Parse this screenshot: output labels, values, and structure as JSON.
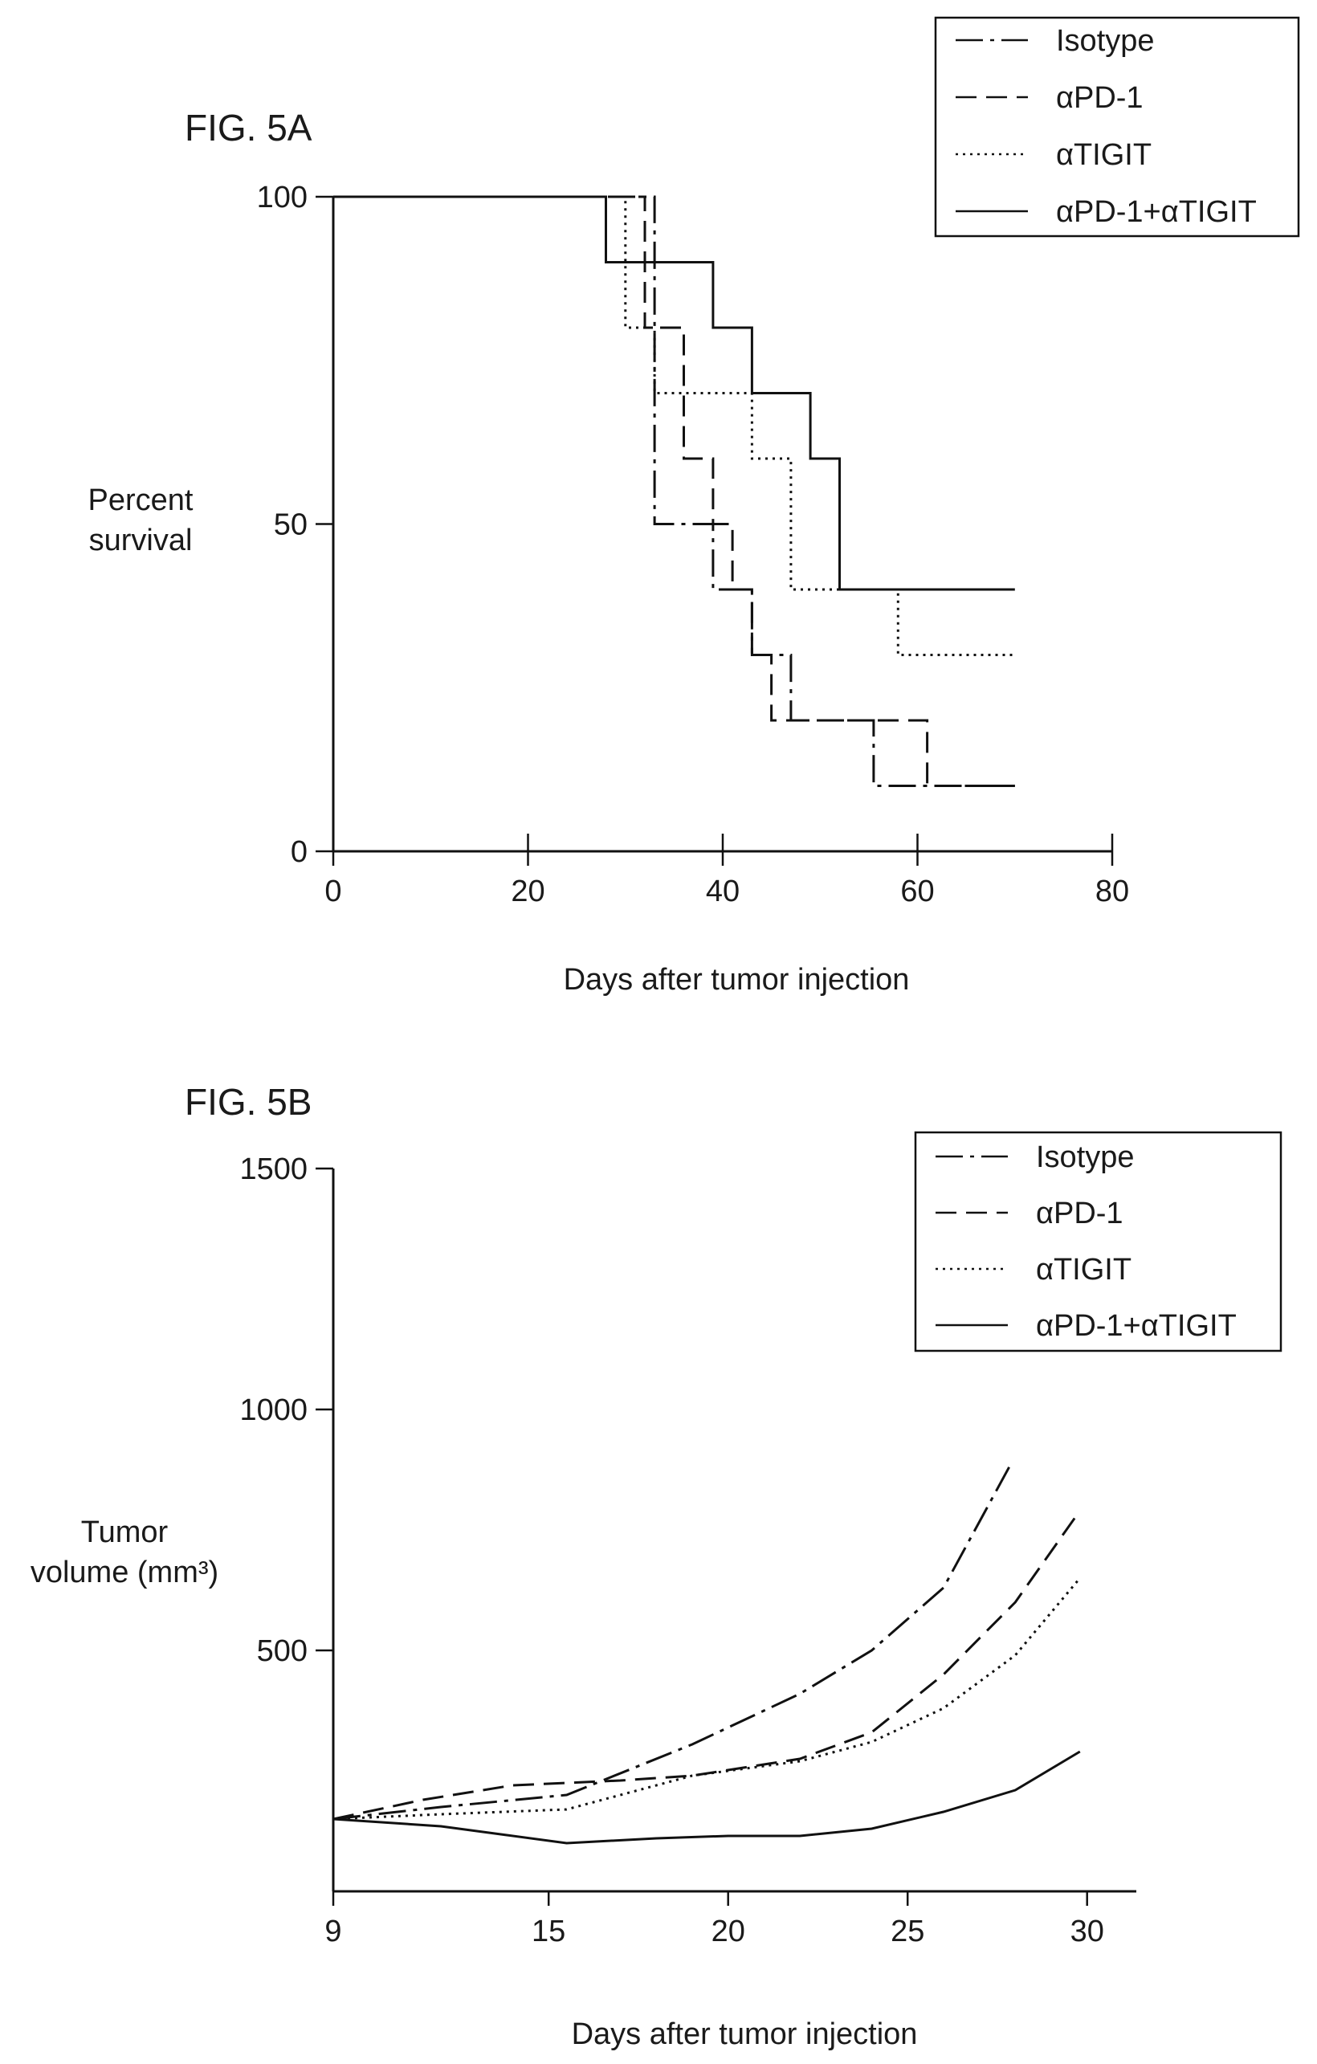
{
  "chart_data": [
    {
      "type": "line",
      "fig_label": "FIG. 5A",
      "xlabel": "Days after tumor injection",
      "ylabel": [
        "Percent",
        "survival"
      ],
      "xlim": [
        0,
        80
      ],
      "ylim": [
        0,
        100
      ],
      "xticks": [
        0,
        20,
        40,
        60,
        80
      ],
      "yticks": [
        0,
        50,
        100
      ],
      "grid": false,
      "legend_position": "top-right",
      "steps": true,
      "series": [
        {
          "name": "Isotype",
          "style": "dashdot",
          "points": [
            [
              0,
              100
            ],
            [
              33,
              100
            ],
            [
              33,
              50
            ],
            [
              39,
              50
            ],
            [
              39,
              40
            ],
            [
              43,
              40
            ],
            [
              43,
              30
            ],
            [
              47,
              30
            ],
            [
              47,
              20
            ],
            [
              55.5,
              20
            ],
            [
              55.5,
              10
            ],
            [
              70,
              10
            ]
          ]
        },
        {
          "name": "αPD-1",
          "style": "dashed",
          "points": [
            [
              0,
              100
            ],
            [
              32,
              100
            ],
            [
              32,
              80
            ],
            [
              36,
              80
            ],
            [
              36,
              60
            ],
            [
              39,
              60
            ],
            [
              39,
              50
            ],
            [
              41,
              50
            ],
            [
              41,
              40
            ],
            [
              43,
              40
            ],
            [
              43,
              30
            ],
            [
              45,
              30
            ],
            [
              45,
              20
            ],
            [
              61,
              20
            ],
            [
              61,
              10
            ],
            [
              70,
              10
            ]
          ]
        },
        {
          "name": "αTIGIT",
          "style": "dotted",
          "points": [
            [
              0,
              100
            ],
            [
              30,
              100
            ],
            [
              30,
              80
            ],
            [
              33,
              80
            ],
            [
              33,
              70
            ],
            [
              43,
              70
            ],
            [
              43,
              60
            ],
            [
              47,
              60
            ],
            [
              47,
              40
            ],
            [
              58,
              40
            ],
            [
              58,
              30
            ],
            [
              70,
              30
            ]
          ]
        },
        {
          "name": "αPD-1+αTIGIT",
          "style": "solid",
          "points": [
            [
              0,
              100
            ],
            [
              28,
              100
            ],
            [
              28,
              90
            ],
            [
              39,
              90
            ],
            [
              39,
              80
            ],
            [
              43,
              80
            ],
            [
              43,
              70
            ],
            [
              49,
              70
            ],
            [
              49,
              60
            ],
            [
              52,
              60
            ],
            [
              52,
              40
            ],
            [
              70,
              40
            ]
          ]
        }
      ]
    },
    {
      "type": "line",
      "fig_label": "FIG. 5B",
      "xlabel": "Days after tumor injection",
      "ylabel": [
        "Tumor",
        "volume (mm³)"
      ],
      "xlim": [
        9,
        30.7
      ],
      "ylim": [
        0,
        1500
      ],
      "xticks": [
        9,
        15,
        20,
        25,
        30
      ],
      "yticks": [
        500,
        1000,
        1500
      ],
      "grid": false,
      "legend_position": "top-right",
      "steps": false,
      "series": [
        {
          "name": "Isotype",
          "style": "dashdot",
          "points": [
            [
              9,
              150
            ],
            [
              12,
              175
            ],
            [
              15.5,
              200
            ],
            [
              19,
              305
            ],
            [
              22,
              410
            ],
            [
              24,
              500
            ],
            [
              26,
              630
            ],
            [
              27.9,
              890
            ]
          ]
        },
        {
          "name": "αPD-1",
          "style": "dashed",
          "points": [
            [
              9,
              150
            ],
            [
              11.5,
              190
            ],
            [
              14,
              220
            ],
            [
              17,
              230
            ],
            [
              19,
              240
            ],
            [
              22,
              275
            ],
            [
              24,
              330
            ],
            [
              26,
              450
            ],
            [
              28,
              600
            ],
            [
              29.8,
              790
            ]
          ]
        },
        {
          "name": "αTIGIT",
          "style": "dotted",
          "points": [
            [
              9,
              150
            ],
            [
              12,
              160
            ],
            [
              15.5,
              170
            ],
            [
              19,
              240
            ],
            [
              22,
              270
            ],
            [
              24,
              310
            ],
            [
              26,
              380
            ],
            [
              28,
              490
            ],
            [
              29.8,
              650
            ]
          ]
        },
        {
          "name": "αPD-1+αTIGIT",
          "style": "solid",
          "points": [
            [
              9,
              150
            ],
            [
              12,
              135
            ],
            [
              15.5,
              100
            ],
            [
              18,
              110
            ],
            [
              20,
              115
            ],
            [
              22,
              115
            ],
            [
              24,
              130
            ],
            [
              26,
              165
            ],
            [
              28,
              210
            ],
            [
              29.8,
              290
            ]
          ]
        }
      ]
    }
  ]
}
